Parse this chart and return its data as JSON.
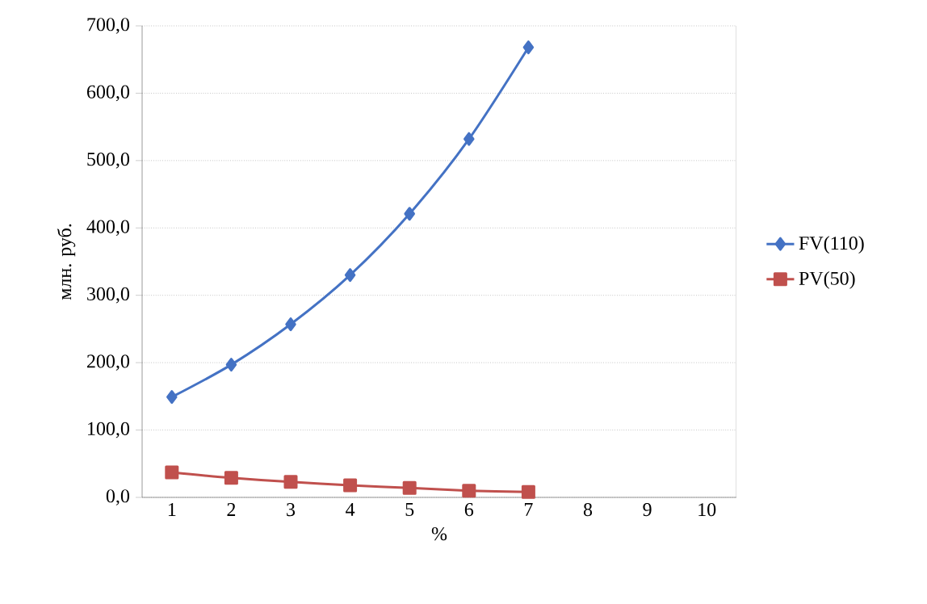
{
  "chart_data": {
    "type": "line",
    "xlabel": "%",
    "ylabel": "млн. руб.",
    "categories": [
      "1",
      "2",
      "3",
      "4",
      "5",
      "6",
      "7",
      "8",
      "9",
      "10"
    ],
    "series": [
      {
        "name": "FV(110)",
        "color": "#4472c4",
        "marker": "diamond",
        "values": [
          149,
          197,
          257,
          330,
          421,
          532,
          668,
          null,
          null,
          null
        ]
      },
      {
        "name": "PV(50)",
        "color": "#c0504d",
        "marker": "square",
        "values": [
          37,
          29,
          23,
          18,
          14,
          10,
          8,
          null,
          null,
          null
        ]
      }
    ],
    "ylim": [
      0,
      700
    ],
    "yticks": [
      {
        "value": 0,
        "label": "0,0"
      },
      {
        "value": 100,
        "label": "100,0"
      },
      {
        "value": 200,
        "label": "200,0"
      },
      {
        "value": 300,
        "label": "300,0"
      },
      {
        "value": 400,
        "label": "400,0"
      },
      {
        "value": 500,
        "label": "500,0"
      },
      {
        "value": 600,
        "label": "600,0"
      },
      {
        "value": 700,
        "label": "700,0"
      }
    ],
    "grid": "y",
    "legend": "right",
    "line_style": "solid"
  }
}
